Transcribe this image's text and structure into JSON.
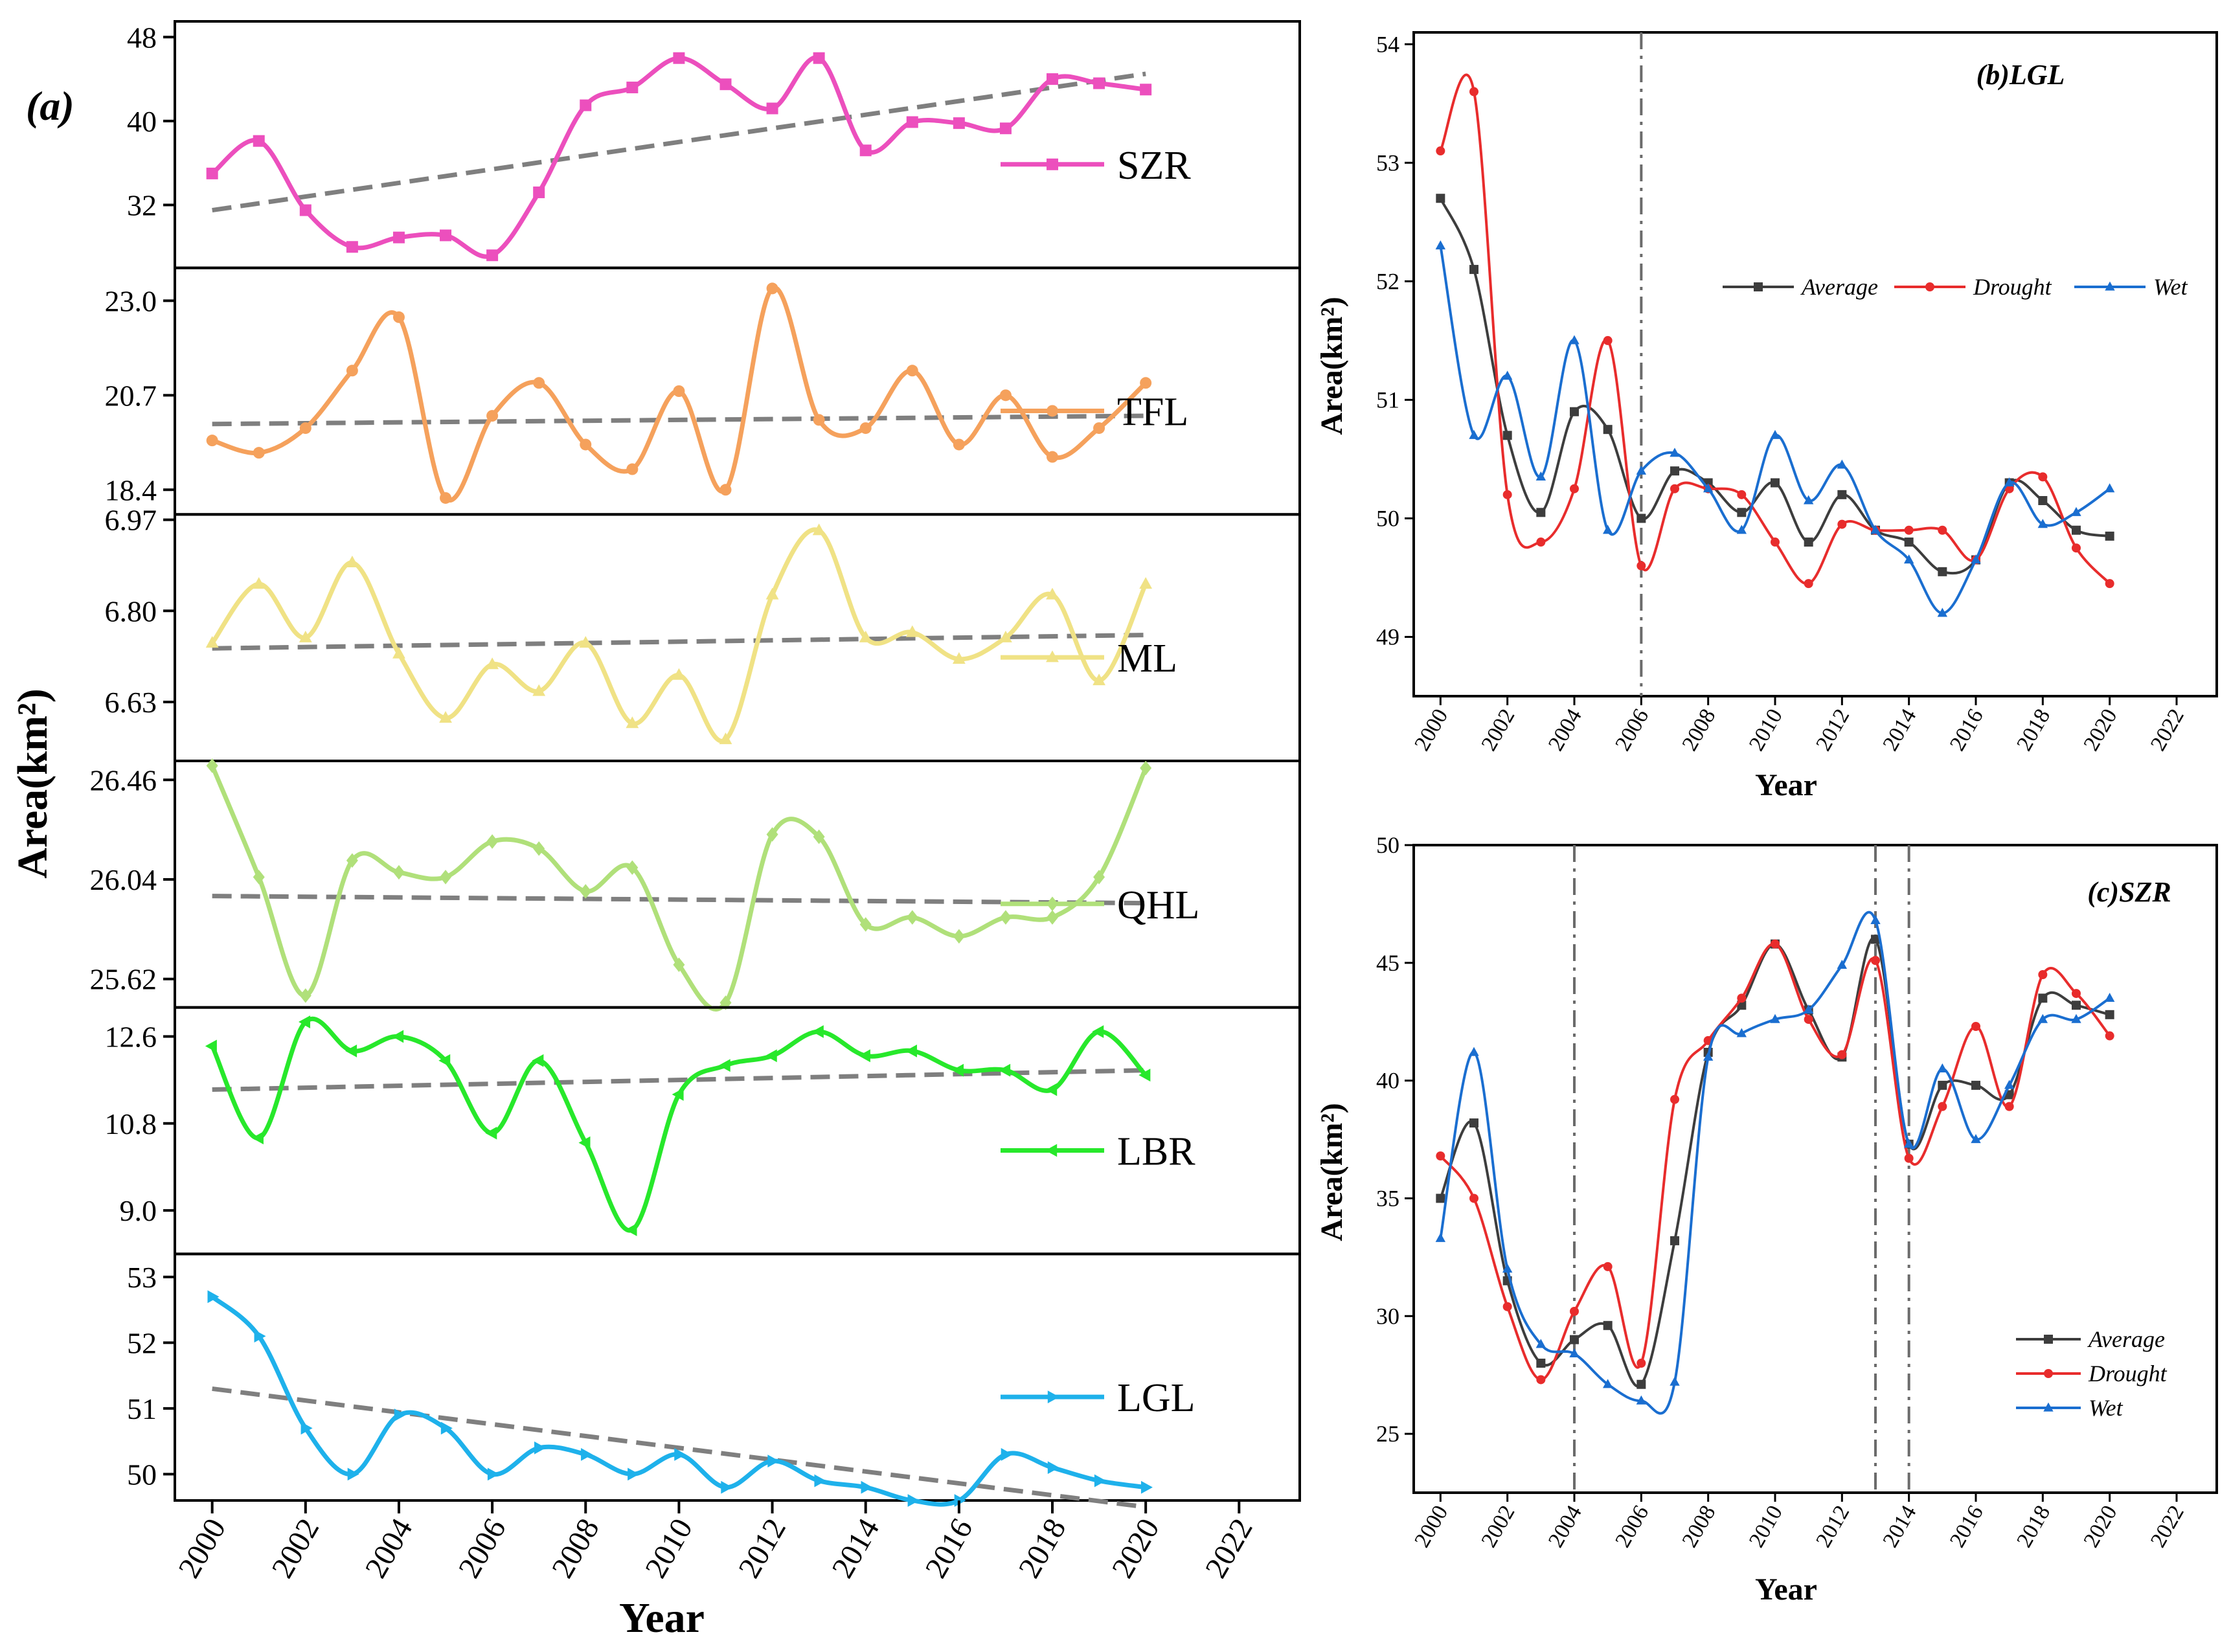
{
  "figure": {
    "ylabel_left": "Area(km²)",
    "xlabel": "Year"
  },
  "chart_data": [
    {
      "id": "a",
      "type": "line",
      "panel_label": "(a)",
      "xlabel": "Year",
      "ylabel": "Area(km²)",
      "x_ticks": [
        "2000",
        "2002",
        "2004",
        "2006",
        "2008",
        "2010",
        "2012",
        "2014",
        "2016",
        "2018",
        "2020",
        "2022"
      ],
      "xlim": [
        1999.2,
        2023.3
      ],
      "x": [
        2000,
        2001,
        2002,
        2003,
        2004,
        2005,
        2006,
        2007,
        2008,
        2009,
        2010,
        2011,
        2012,
        2013,
        2014,
        2015,
        2016,
        2017,
        2018,
        2019,
        2020
      ],
      "subplots": [
        {
          "name": "SZR",
          "color": "#ec4fbd",
          "marker": "square",
          "ylim": [
            26,
            49.5
          ],
          "y_ticks": [
            "48",
            "40",
            "32"
          ],
          "y_tick_values": [
            48,
            40,
            32
          ],
          "values": [
            35.0,
            38.1,
            31.5,
            28.0,
            28.9,
            29.1,
            27.2,
            33.2,
            41.5,
            43.2,
            46.0,
            43.5,
            41.2,
            46.0,
            37.2,
            39.9,
            39.8,
            39.3,
            44.0,
            43.6,
            43.0
          ],
          "trend": [
            31.5,
            44.5
          ]
        },
        {
          "name": "TFL",
          "color": "#f5a15c",
          "marker": "circle",
          "ylim": [
            17.8,
            23.8
          ],
          "y_ticks": [
            "23.0",
            "20.7",
            "18.4"
          ],
          "y_tick_values": [
            23.0,
            20.7,
            18.4
          ],
          "values": [
            19.6,
            19.3,
            19.9,
            21.3,
            22.6,
            18.2,
            20.2,
            21.0,
            19.5,
            18.9,
            20.8,
            18.4,
            23.3,
            20.1,
            19.9,
            21.3,
            19.5,
            20.7,
            19.2,
            19.9,
            21.0
          ],
          "trend": [
            20.0,
            20.2
          ]
        },
        {
          "name": "ML",
          "color": "#f0e285",
          "marker": "triangle-up",
          "ylim": [
            6.52,
            6.98
          ],
          "y_ticks": [
            "6.97",
            "6.80",
            "6.63"
          ],
          "y_tick_values": [
            6.97,
            6.8,
            6.63
          ],
          "values": [
            6.74,
            6.85,
            6.75,
            6.89,
            6.72,
            6.6,
            6.7,
            6.65,
            6.74,
            6.59,
            6.68,
            6.56,
            6.83,
            6.95,
            6.75,
            6.76,
            6.71,
            6.75,
            6.83,
            6.67,
            6.85
          ],
          "trend": [
            6.73,
            6.755
          ]
        },
        {
          "name": "QHL",
          "color": "#b0e07a",
          "marker": "diamond",
          "ylim": [
            25.5,
            26.54
          ],
          "y_ticks": [
            "26.46",
            "26.04",
            "25.62"
          ],
          "y_tick_values": [
            26.46,
            26.04,
            25.62
          ],
          "values": [
            26.52,
            26.05,
            25.55,
            26.12,
            26.07,
            26.05,
            26.2,
            26.17,
            25.99,
            26.09,
            25.68,
            25.52,
            26.23,
            26.22,
            25.85,
            25.88,
            25.8,
            25.88,
            25.88,
            26.05,
            26.51
          ],
          "trend": [
            25.97,
            25.94
          ]
        },
        {
          "name": "LBR",
          "color": "#27e82b",
          "marker": "triangle-left",
          "ylim": [
            8.1,
            13.2
          ],
          "y_ticks": [
            "12.6",
            "10.8",
            "9.0"
          ],
          "y_tick_values": [
            12.6,
            10.8,
            9.0
          ],
          "values": [
            12.4,
            10.5,
            12.9,
            12.3,
            12.6,
            12.1,
            10.6,
            12.1,
            10.4,
            8.6,
            11.4,
            12.0,
            12.2,
            12.7,
            12.2,
            12.3,
            11.9,
            11.9,
            11.5,
            12.7,
            11.8
          ],
          "trend": [
            11.5,
            11.9
          ]
        },
        {
          "name": "LGL",
          "color": "#1eb1eb",
          "marker": "triangle-right",
          "ylim": [
            49.6,
            53.35
          ],
          "y_ticks": [
            "53",
            "52",
            "51",
            "50"
          ],
          "y_tick_values": [
            53,
            52,
            51,
            50
          ],
          "values": [
            52.7,
            52.1,
            50.7,
            50.0,
            50.9,
            50.7,
            50.0,
            50.4,
            50.3,
            50.0,
            50.3,
            49.8,
            50.2,
            49.9,
            49.8,
            49.6,
            49.6,
            50.3,
            50.1,
            49.9,
            49.8
          ],
          "trend": [
            51.3,
            49.5
          ]
        }
      ]
    },
    {
      "id": "b",
      "type": "line",
      "title": "(b)LGL",
      "xlabel": "Year",
      "ylabel": "Area(km²)",
      "xlim": [
        1999.2,
        2023.2
      ],
      "ylim": [
        48.5,
        54.1
      ],
      "x_ticks": [
        "2000",
        "2002",
        "2004",
        "2006",
        "2008",
        "2010",
        "2012",
        "2014",
        "2016",
        "2018",
        "2020",
        "2022"
      ],
      "y_ticks": [
        "54",
        "53",
        "52",
        "51",
        "50",
        "49"
      ],
      "y_tick_values": [
        54,
        53,
        52,
        51,
        50,
        49
      ],
      "vlines": [
        2006
      ],
      "legend": {
        "placement": "top-right",
        "entries": [
          "Average",
          "Drought",
          "Wet"
        ]
      },
      "x": [
        2000,
        2001,
        2002,
        2003,
        2004,
        2005,
        2006,
        2007,
        2008,
        2009,
        2010,
        2011,
        2012,
        2013,
        2014,
        2015,
        2016,
        2017,
        2018,
        2019,
        2020
      ],
      "series": [
        {
          "name": "Average",
          "color": "#3d3d3d",
          "marker": "square",
          "values": [
            52.7,
            52.1,
            50.7,
            50.05,
            50.9,
            50.75,
            50.0,
            50.4,
            50.3,
            50.05,
            50.3,
            49.8,
            50.2,
            49.9,
            49.8,
            49.55,
            49.65,
            50.3,
            50.15,
            49.9,
            49.85
          ]
        },
        {
          "name": "Drought",
          "color": "#e82c2c",
          "marker": "circle",
          "values": [
            53.1,
            53.6,
            50.2,
            49.8,
            50.25,
            51.5,
            49.6,
            50.25,
            50.25,
            50.2,
            49.8,
            49.45,
            49.95,
            49.9,
            49.9,
            49.9,
            49.65,
            50.25,
            50.35,
            49.75,
            49.45
          ]
        },
        {
          "name": "Wet",
          "color": "#1a6ed0",
          "marker": "triangle-up",
          "values": [
            52.3,
            50.7,
            51.2,
            50.35,
            51.5,
            49.9,
            50.4,
            50.55,
            50.25,
            49.9,
            50.7,
            50.15,
            50.45,
            49.9,
            49.65,
            49.2,
            49.65,
            50.3,
            49.95,
            50.05,
            50.25
          ]
        }
      ]
    },
    {
      "id": "c",
      "type": "line",
      "title": "(c)SZR",
      "xlabel": "Year",
      "ylabel": "Area(km²)",
      "xlim": [
        1999.2,
        2023.2
      ],
      "ylim": [
        22.5,
        50
      ],
      "x_ticks": [
        "2000",
        "2002",
        "2004",
        "2006",
        "2008",
        "2010",
        "2012",
        "2014",
        "2016",
        "2018",
        "2020",
        "2022"
      ],
      "y_ticks": [
        "50",
        "45",
        "40",
        "35",
        "30",
        "25"
      ],
      "y_tick_values": [
        50,
        45,
        40,
        35,
        30,
        25
      ],
      "vlines": [
        2004,
        2013,
        2014
      ],
      "legend": {
        "placement": "bottom-right",
        "entries": [
          "Average",
          "Drought",
          "Wet"
        ]
      },
      "x": [
        2000,
        2001,
        2002,
        2003,
        2004,
        2005,
        2006,
        2007,
        2008,
        2009,
        2010,
        2011,
        2012,
        2013,
        2014,
        2015,
        2016,
        2017,
        2018,
        2019,
        2020
      ],
      "series": [
        {
          "name": "Average",
          "color": "#3d3d3d",
          "marker": "square",
          "values": [
            35.0,
            38.2,
            31.5,
            28.0,
            29.0,
            29.6,
            27.1,
            33.2,
            41.2,
            43.2,
            45.8,
            43.0,
            41.0,
            46.0,
            37.3,
            39.8,
            39.8,
            39.4,
            43.5,
            43.2,
            42.8
          ]
        },
        {
          "name": "Drought",
          "color": "#e82c2c",
          "marker": "circle",
          "values": [
            36.8,
            35.0,
            30.4,
            27.3,
            30.2,
            32.1,
            28.0,
            39.2,
            41.7,
            43.5,
            45.8,
            42.6,
            41.1,
            45.1,
            36.7,
            38.9,
            42.3,
            38.9,
            44.5,
            43.7,
            41.9
          ]
        },
        {
          "name": "Wet",
          "color": "#1a6ed0",
          "marker": "triangle-up",
          "values": [
            33.3,
            41.2,
            32.0,
            28.8,
            28.4,
            27.1,
            26.4,
            27.2,
            41.0,
            42.0,
            42.6,
            43.0,
            44.9,
            46.8,
            37.3,
            40.5,
            37.5,
            39.8,
            42.6,
            42.6,
            43.5
          ]
        }
      ]
    }
  ]
}
